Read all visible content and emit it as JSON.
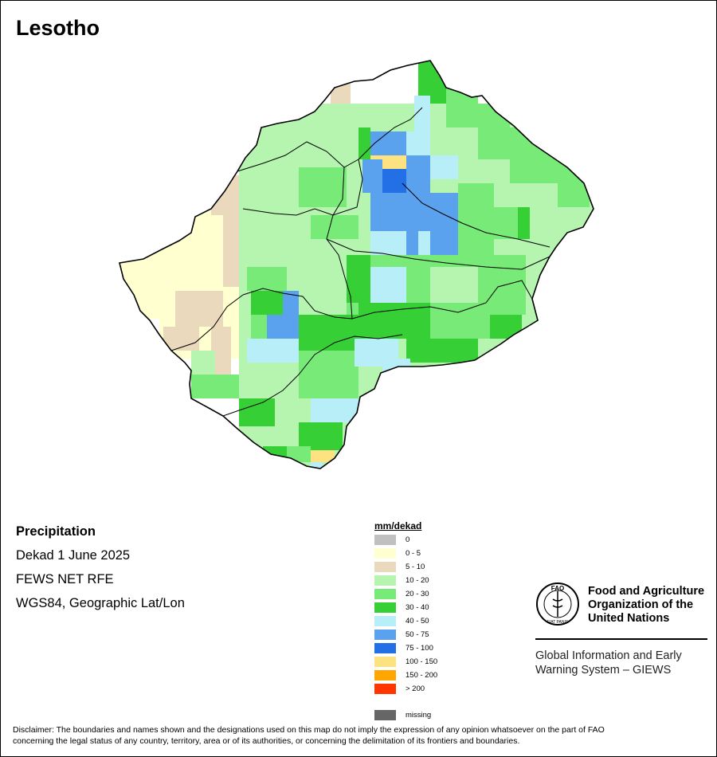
{
  "map": {
    "title": "Lesotho",
    "layer": "Precipitation",
    "period": "Dekad 1 June 2025",
    "source": "FEWS NET RFE",
    "projection": "WGS84, Geographic Lat/Lon"
  },
  "legend": {
    "title": "mm/dekad",
    "classes": [
      {
        "label": "0",
        "color": "#c0c0c0"
      },
      {
        "label": "0 - 5",
        "color": "#ffffd0"
      },
      {
        "label": "5 - 10",
        "color": "#ead9bc"
      },
      {
        "label": "10 - 20",
        "color": "#b5f5b0"
      },
      {
        "label": "20 - 30",
        "color": "#78ea78"
      },
      {
        "label": "30 - 40",
        "color": "#36d036"
      },
      {
        "label": "40 - 50",
        "color": "#b8eef8"
      },
      {
        "label": "50 - 75",
        "color": "#5aa2ee"
      },
      {
        "label": "75 - 100",
        "color": "#226fe6"
      },
      {
        "label": "100 - 150",
        "color": "#fde282"
      },
      {
        "label": "150 - 200",
        "color": "#ffa600"
      },
      {
        "label": "> 200",
        "color": "#ff3600"
      }
    ],
    "missing": {
      "label": "missing",
      "color": "#666666"
    }
  },
  "branding": {
    "org_name": [
      "Food and Agriculture",
      "Organization of the",
      "United Nations"
    ],
    "logo_text": "FAO",
    "logo_motto": "FIAT PANIS",
    "system_name": [
      "Global Information and Early",
      "Warning System – GIEWS"
    ]
  },
  "disclaimer": [
    "Disclaimer: The boundaries and names shown and the designations used on this map do not imply the expression of any opinion whatsoever on the part of FAO",
    "concerning the legal status of any country, territory, area or of its authorities, or concerning the delimitation of its frontiers and boundaries."
  ]
}
